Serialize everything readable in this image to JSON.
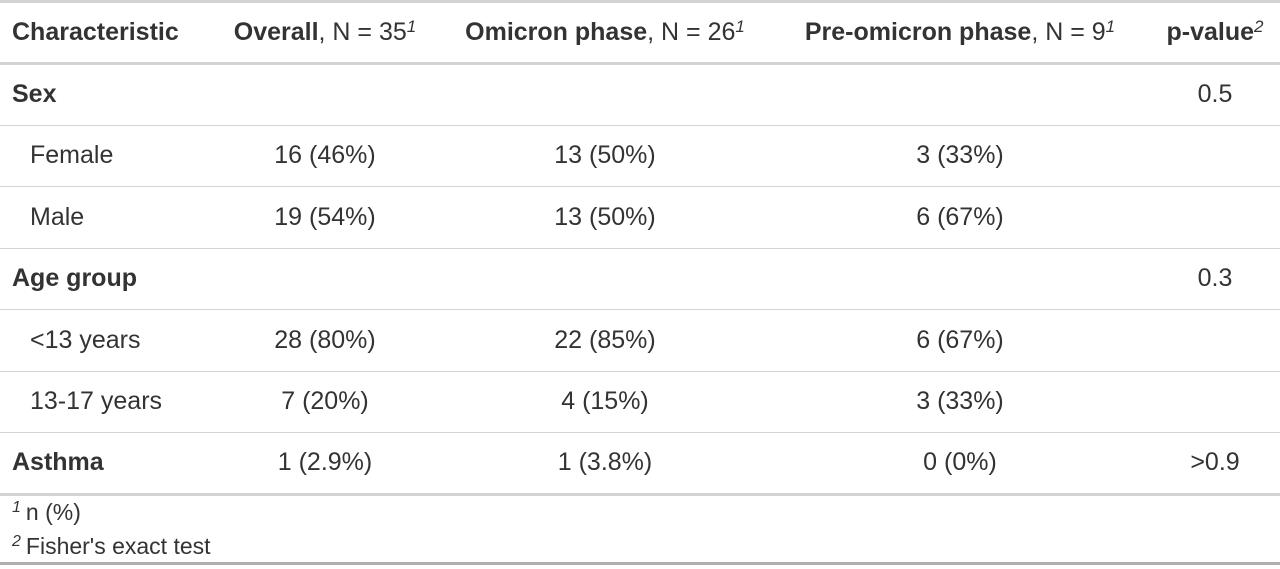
{
  "header": {
    "characteristic": "Characteristic",
    "overall_label": "Overall",
    "overall_n": ", N = 35",
    "overall_sup": "1",
    "omicron_label": "Omicron phase",
    "omicron_n": ", N = 26",
    "omicron_sup": "1",
    "pre_omicron_label": "Pre-omicron phase",
    "pre_omicron_n": ", N = 9",
    "pre_omicron_sup": "1",
    "pvalue_label": "p-value",
    "pvalue_sup": "2"
  },
  "rows": [
    {
      "label": "Sex",
      "overall": "",
      "omicron": "",
      "pre_omicron": "",
      "pvalue": "0.5"
    },
    {
      "label": "Female",
      "overall": "16 (46%)",
      "omicron": "13 (50%)",
      "pre_omicron": "3 (33%)",
      "pvalue": ""
    },
    {
      "label": "Male",
      "overall": "19 (54%)",
      "omicron": "13 (50%)",
      "pre_omicron": "6 (67%)",
      "pvalue": ""
    },
    {
      "label": "Age group",
      "overall": "",
      "omicron": "",
      "pre_omicron": "",
      "pvalue": "0.3"
    },
    {
      "label": "<13 years",
      "overall": "28 (80%)",
      "omicron": "22 (85%)",
      "pre_omicron": "6 (67%)",
      "pvalue": ""
    },
    {
      "label": "13-17 years",
      "overall": "7 (20%)",
      "omicron": "4 (15%)",
      "pre_omicron": "3 (33%)",
      "pvalue": ""
    },
    {
      "label": "Asthma",
      "overall": "1 (2.9%)",
      "omicron": "1 (3.8%)",
      "pre_omicron": "0 (0%)",
      "pvalue": ">0.9"
    }
  ],
  "footnotes": [
    {
      "mark": "1",
      "text": "n (%)"
    },
    {
      "mark": "2",
      "text": "Fisher's exact test"
    }
  ]
}
